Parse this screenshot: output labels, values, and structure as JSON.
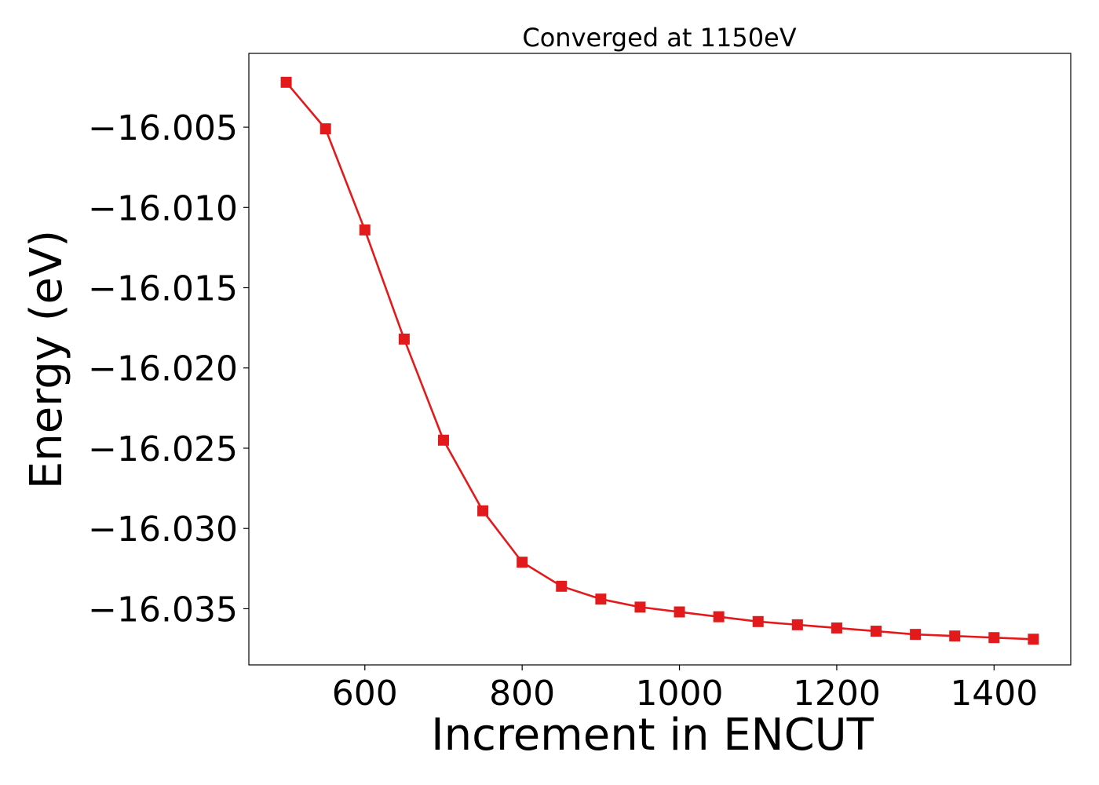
{
  "chart_data": {
    "type": "line",
    "title": "Converged at 1150eV",
    "xlabel": "Increment in ENCUT",
    "ylabel": "Energy (eV)",
    "x": [
      500,
      550,
      600,
      650,
      700,
      750,
      800,
      850,
      900,
      950,
      1000,
      1050,
      1100,
      1150,
      1200,
      1250,
      1300,
      1350,
      1400,
      1450
    ],
    "series": [
      {
        "values": [
          -16.0022,
          -16.0051,
          -16.0114,
          -16.0182,
          -16.0245,
          -16.0289,
          -16.0321,
          -16.0336,
          -16.0344,
          -16.0349,
          -16.0352,
          -16.0355,
          -16.0358,
          -16.036,
          -16.0362,
          -16.0364,
          -16.0366,
          -16.0367,
          -16.0368,
          -16.0369
        ],
        "color": "#e31a1c",
        "marker": "square"
      }
    ],
    "xlim": [
      452.5,
      1497.5
    ],
    "ylim": [
      -16.0385,
      -16.0004
    ],
    "xticks": [
      600,
      800,
      1000,
      1200,
      1400
    ],
    "xtick_labels": [
      "600",
      "800",
      "1000",
      "1200",
      "1400"
    ],
    "yticks": [
      -16.005,
      -16.01,
      -16.015,
      -16.02,
      -16.025,
      -16.03,
      -16.035
    ],
    "ytick_labels": [
      "−16.005",
      "−16.010",
      "−16.015",
      "−16.020",
      "−16.025",
      "−16.030",
      "−16.035"
    ],
    "grid": false,
    "legend": "none"
  }
}
